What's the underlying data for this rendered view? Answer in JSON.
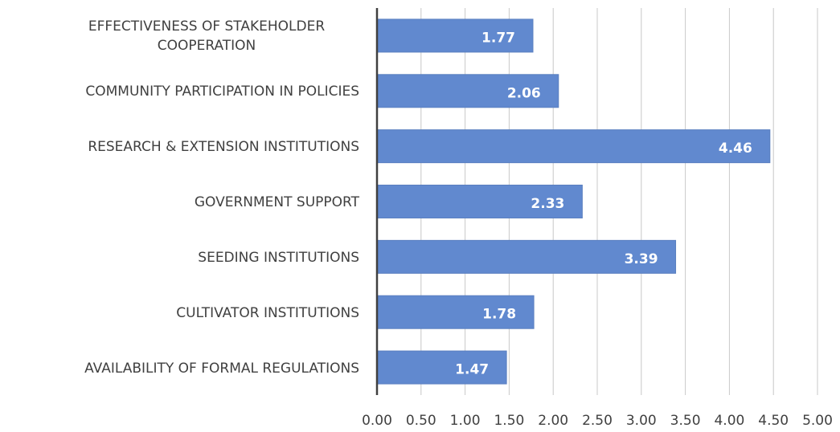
{
  "chart_data": {
    "type": "barh",
    "categories": [
      "EFFECTIVENESS OF STAKEHOLDER COOPERATION",
      "COMMUNITY PARTICIPATION IN POLICIES",
      "RESEARCH & EXTENSION INSTITUTIONS",
      "GOVERNMENT SUPPORT",
      "SEEDING INSTITUTIONS",
      "CULTIVATOR INSTITUTIONS",
      "AVAILABILITY OF FORMAL REGULATIONS"
    ],
    "values": [
      1.77,
      2.06,
      4.46,
      2.33,
      3.39,
      1.78,
      1.47
    ],
    "color": "#6189cf",
    "xlim": [
      0,
      5
    ],
    "xticks": [
      {
        "value": 0,
        "label": "0.00"
      },
      {
        "value": 0.5,
        "label": "0.50"
      },
      {
        "value": 1,
        "label": "1.00"
      },
      {
        "value": 1.5,
        "label": "1.50"
      },
      {
        "value": 2,
        "label": "2.00"
      },
      {
        "value": 2.5,
        "label": "2.50"
      },
      {
        "value": 3,
        "label": "3.00"
      },
      {
        "value": 3.5,
        "label": "3.50"
      },
      {
        "value": 4,
        "label": "4.00"
      },
      {
        "value": 4.5,
        "label": "4.50"
      },
      {
        "value": 5,
        "label": "5.00"
      }
    ],
    "grid": true
  }
}
